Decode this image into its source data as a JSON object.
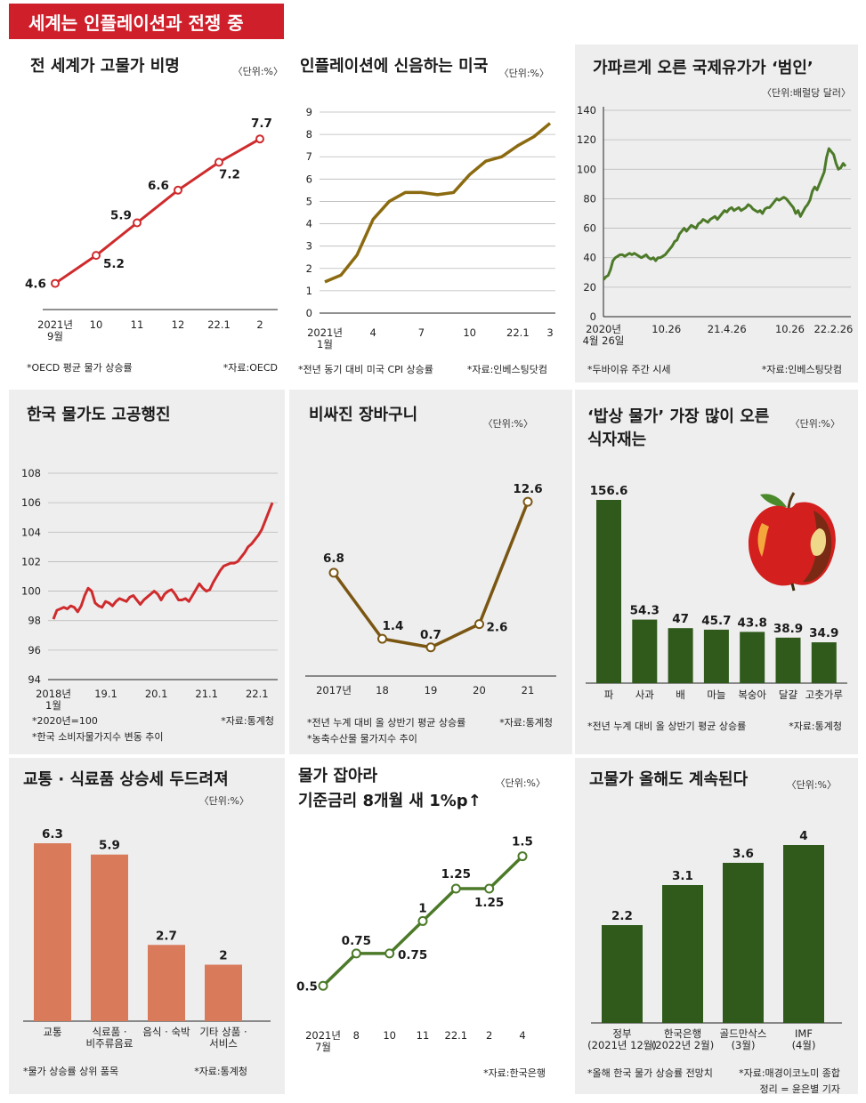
{
  "header": {
    "title": "세계는 인플레이션과 전쟁 중"
  },
  "credit": "정리 = 윤은별 기자",
  "colors": {
    "red_line": "#cf2b2d",
    "olive_line": "#8b6a10",
    "green_line": "#4c7a29",
    "brown_line": "#7a5612",
    "dark_green_bar": "#2f5a1b",
    "salmon_bar": "#d97a5b",
    "panel_bg": "#eeeeee",
    "title_bg": "#cf1f2b"
  },
  "chart_data": [
    {
      "id": "p1",
      "type": "line",
      "title": "전 세계가 고물가 비명",
      "unit": "〈단위:%〉",
      "x_ticks": [
        [
          "2021년",
          "9월"
        ],
        [
          "10"
        ],
        [
          "11"
        ],
        [
          "12"
        ],
        [
          "22.1"
        ],
        [
          "2"
        ]
      ],
      "values": [
        4.6,
        5.2,
        5.9,
        6.6,
        7.2,
        7.7
      ],
      "labels": [
        "4.6",
        "5.2",
        "5.9",
        "6.6",
        "7.2",
        "7.7"
      ],
      "ylim": [
        4,
        8.2
      ],
      "note": "*OECD 평균 물가 상승률",
      "source": "*자료:OECD"
    },
    {
      "id": "p2",
      "type": "line",
      "title": "인플레이션에 신음하는 미국",
      "unit": "〈단위:%〉",
      "y_ticks": [
        0,
        1,
        2,
        3,
        4,
        5,
        6,
        7,
        8,
        9
      ],
      "ylim": [
        0,
        9
      ],
      "x_tick_labels": [
        [
          "2021년",
          "1월"
        ],
        [
          "4"
        ],
        [
          "7"
        ],
        [
          "10"
        ],
        [
          "22.1"
        ],
        [
          "3"
        ]
      ],
      "x_tick_index": [
        0,
        3,
        6,
        9,
        12,
        14
      ],
      "values": [
        1.4,
        1.7,
        2.6,
        4.2,
        5.0,
        5.4,
        5.4,
        5.3,
        5.4,
        6.2,
        6.8,
        7.0,
        7.5,
        7.9,
        8.5
      ],
      "note": "*전년 동기 대비 미국 CPI 상승률",
      "source": "*자료:인베스팅닷컴"
    },
    {
      "id": "p3",
      "type": "line",
      "title": "가파르게 오른 국제유가가 ‘범인’",
      "unit": "〈단위:배럴당 달러〉",
      "y_ticks": [
        0,
        20,
        40,
        60,
        80,
        100,
        120,
        140
      ],
      "ylim": [
        0,
        140
      ],
      "x_tick_labels": [
        [
          "2020년",
          "4월 26일"
        ],
        [
          "10.26"
        ],
        [
          "21.4.26"
        ],
        [
          "10.26"
        ],
        [
          "22.2.26"
        ]
      ],
      "x_tick_pos": [
        0,
        0.26,
        0.51,
        0.77,
        0.95
      ],
      "values": [
        25,
        27,
        28,
        32,
        38,
        40,
        41,
        42,
        42,
        41,
        42,
        43,
        42,
        43,
        42,
        41,
        40,
        41,
        42,
        40,
        39,
        40,
        38,
        40,
        40,
        41,
        42,
        44,
        46,
        48,
        51,
        52,
        56,
        58,
        60,
        58,
        60,
        62,
        61,
        60,
        63,
        64,
        66,
        65,
        64,
        66,
        67,
        68,
        66,
        68,
        70,
        72,
        71,
        73,
        74,
        72,
        73,
        74,
        72,
        73,
        74,
        76,
        75,
        73,
        72,
        71,
        72,
        70,
        73,
        74,
        74,
        76,
        78,
        80,
        79,
        80,
        81,
        80,
        78,
        76,
        74,
        70,
        72,
        68,
        71,
        74,
        76,
        79,
        85,
        88,
        86,
        90,
        94,
        98,
        108,
        114,
        112,
        110,
        104,
        100,
        101,
        104,
        102
      ],
      "note": "*두바이유 주간 시세",
      "source": "*자료:인베스팅닷컴"
    },
    {
      "id": "p4",
      "type": "line",
      "title": "한국 물가도 고공행진",
      "y_ticks": [
        94,
        96,
        98,
        100,
        102,
        104,
        106,
        108
      ],
      "ylim": [
        94,
        108
      ],
      "x_tick_labels": [
        [
          "2018년",
          "1월"
        ],
        [
          "19.1"
        ],
        [
          "20.1"
        ],
        [
          "21.1"
        ],
        [
          "22.1"
        ]
      ],
      "x_tick_pos": [
        0,
        0.24,
        0.47,
        0.7,
        0.93
      ],
      "values": [
        98.1,
        98.7,
        98.8,
        98.9,
        98.8,
        99.0,
        98.9,
        98.6,
        99.0,
        99.7,
        100.2,
        100.0,
        99.2,
        99.0,
        98.9,
        99.3,
        99.2,
        99.0,
        99.3,
        99.5,
        99.4,
        99.3,
        99.6,
        99.7,
        99.4,
        99.1,
        99.4,
        99.6,
        99.8,
        100.0,
        99.8,
        99.4,
        99.8,
        100.0,
        100.1,
        99.8,
        99.4,
        99.4,
        99.5,
        99.3,
        99.7,
        100.1,
        100.5,
        100.2,
        100.0,
        100.1,
        100.6,
        101.0,
        101.4,
        101.7,
        101.8,
        101.9,
        101.9,
        102.0,
        102.3,
        102.6,
        103.0,
        103.2,
        103.5,
        103.8,
        104.2,
        104.8,
        105.4,
        106.0
      ],
      "notes": [
        "*2020년=100",
        "*한국 소비자물가지수 변동 추이"
      ],
      "source": "*자료:통계청"
    },
    {
      "id": "p5",
      "type": "line",
      "title": "비싸진 장바구니",
      "unit": "〈단위:%〉",
      "x_ticks": [
        "2017년",
        "18",
        "19",
        "20",
        "21"
      ],
      "values": [
        6.8,
        1.4,
        0.7,
        2.6,
        12.6
      ],
      "labels": [
        "6.8",
        "1.4",
        "0.7",
        "2.6",
        "12.6"
      ],
      "ylim": [
        -1.5,
        14.5
      ],
      "notes": [
        "*전년 누계 대비 올 상반기 평균 상승률",
        "*농축수산물 물가지수 추이"
      ],
      "source": "*자료:통계청"
    },
    {
      "id": "p6",
      "type": "bar",
      "title": [
        "‘밥상 물가’ 가장 많이 오른",
        "식자재는"
      ],
      "unit": "〈단위:%〉",
      "categories": [
        "파",
        "사과",
        "배",
        "마늘",
        "복숭아",
        "달걀",
        "고춧가루"
      ],
      "values": [
        156.6,
        54.3,
        47,
        45.7,
        43.8,
        38.9,
        34.9
      ],
      "labels": [
        "156.6",
        "54.3",
        "47",
        "45.7",
        "43.8",
        "38.9",
        "34.9"
      ],
      "ylim": [
        0,
        156.6
      ],
      "note": "*전년 누계 대비 올 상반기 평균 상승률",
      "source": "*자료:통계청",
      "illustration": "apple-illustration"
    },
    {
      "id": "p7",
      "type": "bar",
      "title": "교통 · 식료품 상승세 두드려져",
      "unit": "〈단위:%〉",
      "categories": [
        [
          "교통"
        ],
        [
          "식료품 ·",
          "비주류음료"
        ],
        [
          "음식 · 숙박"
        ],
        [
          "기타 상품 ·",
          "서비스"
        ]
      ],
      "values": [
        6.3,
        5.9,
        2.7,
        2
      ],
      "labels": [
        "6.3",
        "5.9",
        "2.7",
        "2"
      ],
      "ylim": [
        0,
        6.3
      ],
      "note": "*물가 상승률 상위 품목",
      "source": "*자료:통계청"
    },
    {
      "id": "p8",
      "type": "line",
      "title": [
        "물가 잡아라",
        "기준금리 8개월 새 1%p↑"
      ],
      "unit": "〈단위:%〉",
      "x_ticks": [
        [
          "2021년",
          "7월"
        ],
        [
          "8"
        ],
        [
          "10"
        ],
        [
          "11"
        ],
        [
          "22.1"
        ],
        [
          "2"
        ],
        [
          "4"
        ]
      ],
      "values": [
        0.5,
        0.75,
        0.75,
        1,
        1.25,
        1.25,
        1.5
      ],
      "labels": [
        "0.5",
        "0.75",
        "0.75",
        "1",
        "1.25",
        "1.25",
        "1.5"
      ],
      "ylim": [
        0.2,
        1.6
      ],
      "source": "*자료:한국은행"
    },
    {
      "id": "p9",
      "type": "bar",
      "title": "고물가 올해도 계속된다",
      "unit": "〈단위:%〉",
      "categories": [
        [
          "정부",
          "(2021년 12월)"
        ],
        [
          "한국은행",
          "(2022년 2월)"
        ],
        [
          "골드만삭스",
          "(3월)"
        ],
        [
          "IMF",
          "(4월)"
        ]
      ],
      "values": [
        2.2,
        3.1,
        3.6,
        4
      ],
      "labels": [
        "2.2",
        "3.1",
        "3.6",
        "4"
      ],
      "ylim": [
        0,
        4
      ],
      "note": "*올해 한국 물가 상승률 전망치",
      "source": "*자료:매경이코노미 종합"
    }
  ]
}
